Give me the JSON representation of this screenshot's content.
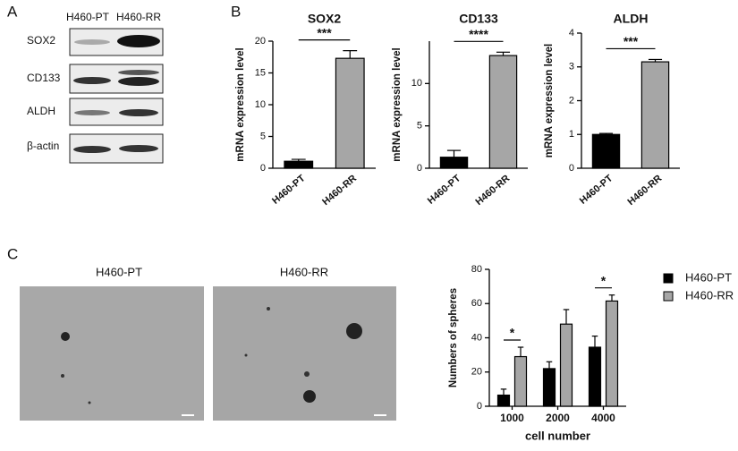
{
  "panel_labels": [
    "A",
    "B",
    "C"
  ],
  "blot": {
    "columns": [
      "H460-PT",
      "H460-RR"
    ],
    "rows": [
      "SOX2",
      "CD133",
      "ALDH",
      "β-actin"
    ]
  },
  "images": {
    "labels": [
      "H460-PT",
      "H460-RR"
    ]
  },
  "chart_data": [
    {
      "type": "bar",
      "title": "SOX2",
      "ylabel": "mRNA expression level",
      "categories": [
        "H460-PT",
        "H460-RR"
      ],
      "values": [
        1.1,
        17.3
      ],
      "errors": [
        0.3,
        1.2
      ],
      "colors": [
        "#000000",
        "#a6a6a6"
      ],
      "ylim": [
        0,
        20
      ],
      "yticks": [
        0,
        5,
        10,
        15,
        20
      ],
      "significance": "***"
    },
    {
      "type": "bar",
      "title": "CD133",
      "ylabel": "mRNA expression level",
      "categories": [
        "H460-PT",
        "H460-RR"
      ],
      "values": [
        1.3,
        13.3
      ],
      "errors": [
        0.8,
        0.4
      ],
      "colors": [
        "#000000",
        "#a6a6a6"
      ],
      "ylim": [
        0,
        15
      ],
      "yticks": [
        0,
        5,
        10
      ],
      "significance": "****"
    },
    {
      "type": "bar",
      "title": "ALDH",
      "ylabel": "mRNA expression level",
      "categories": [
        "H460-PT",
        "H460-RR"
      ],
      "values": [
        1.0,
        3.15
      ],
      "errors": [
        0.03,
        0.07
      ],
      "colors": [
        "#000000",
        "#a6a6a6"
      ],
      "ylim": [
        0,
        4
      ],
      "yticks": [
        0,
        1,
        2,
        3,
        4
      ],
      "significance": "***"
    },
    {
      "type": "grouped-bar",
      "xlabel": "cell number",
      "ylabel": "Numbers of spheres",
      "categories": [
        "1000",
        "2000",
        "4000"
      ],
      "series": [
        {
          "name": "H460-PT",
          "color": "#000000",
          "values": [
            6.5,
            22,
            34.5
          ],
          "errors": [
            3.5,
            4,
            6.5
          ]
        },
        {
          "name": "H460-RR",
          "color": "#a6a6a6",
          "values": [
            29,
            48,
            61.5
          ],
          "errors": [
            5.5,
            8.5,
            3.5
          ]
        }
      ],
      "ylim": [
        0,
        80
      ],
      "yticks": [
        0,
        20,
        40,
        60,
        80
      ],
      "significance": [
        "*",
        null,
        "*"
      ],
      "legend": "right"
    }
  ]
}
